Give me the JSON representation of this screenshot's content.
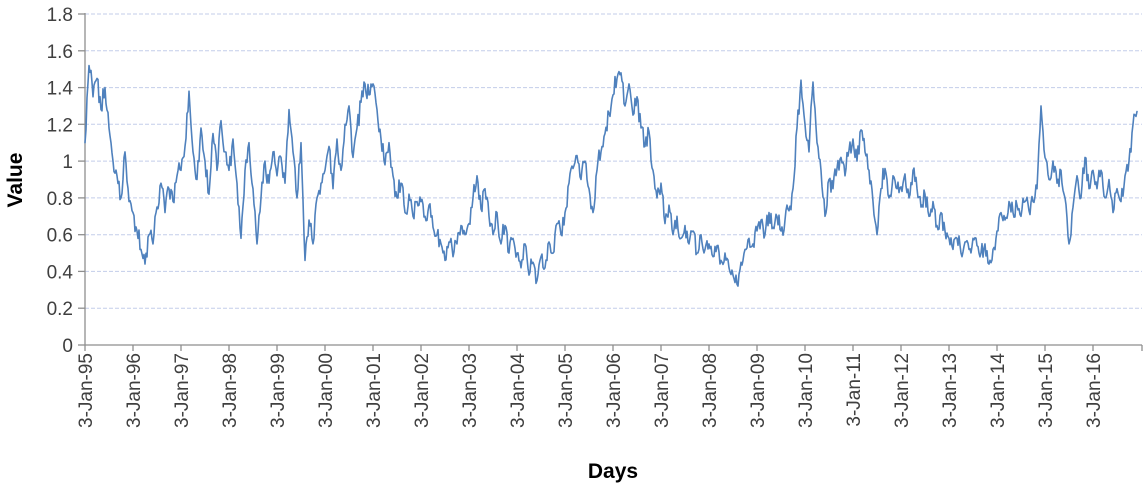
{
  "figure": {
    "y_axis_title": "Value",
    "x_axis_title": "Days",
    "background": "#ffffff"
  },
  "chart_data": {
    "type": "line",
    "title": "",
    "xlabel": "Days",
    "ylabel": "Value",
    "ylim": [
      0,
      1.8
    ],
    "ytick_step": 0.2,
    "yticks": [
      "0",
      "0.2",
      "0.4",
      "0.6",
      "0.8",
      "1",
      "1.2",
      "1.4",
      "1.6",
      "1.8"
    ],
    "x_ticks": [
      "3-Jan-95",
      "3-Jan-96",
      "3-Jan-97",
      "3-Jan-98",
      "3-Jan-99",
      "3-Jan-00",
      "3-Jan-01",
      "3-Jan-02",
      "3-Jan-03",
      "3-Jan-04",
      "3-Jan-05",
      "3-Jan-06",
      "3-Jan-07",
      "3-Jan-08",
      "3-Jan-09",
      "3-Jan-10",
      "3-Jan-11",
      "3-Jan-12",
      "3-Jan-13",
      "3-Jan-14",
      "3-Jan-15",
      "3-Jan-16"
    ],
    "x_start_year": 1995,
    "x_end_approx": "Dec-2016",
    "grid": {
      "horizontal": true,
      "style": "dashed",
      "color": "#c3cdea"
    },
    "legend": null,
    "axis_color": "#8e8e8e",
    "tick_label_color": "#3f3f3f",
    "series": [
      {
        "name": "Value",
        "color": "#4f81bd",
        "noise_amplitude": 0.06,
        "years": [
          {
            "year": 1995,
            "values": [
              1.1,
              1.52,
              1.35,
              1.45,
              1.28,
              1.4,
              1.18,
              1.0,
              0.92,
              0.8,
              1.05,
              0.78
            ]
          },
          {
            "year": 1996,
            "values": [
              0.72,
              0.62,
              0.52,
              0.44,
              0.6,
              0.55,
              0.75,
              0.88,
              0.72,
              0.85,
              0.78,
              0.92
            ]
          },
          {
            "year": 1997,
            "values": [
              0.95,
              1.08,
              1.38,
              1.05,
              0.9,
              1.18,
              1.0,
              0.82,
              1.15,
              0.95,
              1.22,
              1.05
            ]
          },
          {
            "year": 1998,
            "values": [
              0.95,
              1.12,
              0.88,
              0.58,
              0.95,
              1.1,
              0.85,
              0.55,
              0.8,
              1.0,
              0.88,
              1.05
            ]
          },
          {
            "year": 1999,
            "values": [
              0.92,
              1.02,
              0.88,
              1.28,
              1.05,
              0.8,
              1.1,
              0.46,
              0.68,
              0.55,
              0.8,
              0.88
            ]
          },
          {
            "year": 2000,
            "values": [
              0.95,
              1.08,
              0.85,
              1.12,
              0.95,
              1.2,
              1.3,
              1.02,
              1.18,
              1.32,
              1.42,
              1.36
            ]
          },
          {
            "year": 2001,
            "values": [
              1.42,
              1.28,
              1.12,
              0.98,
              1.1,
              0.92,
              0.8,
              0.88,
              0.72,
              0.82,
              0.7,
              0.78
            ]
          },
          {
            "year": 2002,
            "values": [
              0.78,
              0.7,
              0.76,
              0.64,
              0.6,
              0.55,
              0.46,
              0.56,
              0.48,
              0.55,
              0.65,
              0.6
            ]
          },
          {
            "year": 2003,
            "values": [
              0.66,
              0.8,
              0.92,
              0.74,
              0.85,
              0.7,
              0.6,
              0.72,
              0.55,
              0.65,
              0.5,
              0.58
            ]
          },
          {
            "year": 2004,
            "values": [
              0.5,
              0.42,
              0.55,
              0.38,
              0.45,
              0.35,
              0.48,
              0.42,
              0.56,
              0.5,
              0.66,
              0.6
            ]
          },
          {
            "year": 2005,
            "values": [
              0.72,
              0.88,
              0.96,
              1.03,
              0.9,
              1.0,
              0.85,
              0.72,
              0.95,
              1.05,
              1.15,
              1.26
            ]
          },
          {
            "year": 2006,
            "values": [
              1.36,
              1.45,
              1.48,
              1.3,
              1.42,
              1.25,
              1.35,
              1.18,
              1.08,
              1.16,
              0.95,
              0.8
            ]
          },
          {
            "year": 2007,
            "values": [
              0.88,
              0.66,
              0.76,
              0.6,
              0.7,
              0.58,
              0.65,
              0.55,
              0.62,
              0.5,
              0.6,
              0.52
            ]
          },
          {
            "year": 2008,
            "values": [
              0.55,
              0.48,
              0.54,
              0.46,
              0.5,
              0.42,
              0.38,
              0.33,
              0.45,
              0.52,
              0.58,
              0.55
            ]
          },
          {
            "year": 2009,
            "values": [
              0.62,
              0.68,
              0.6,
              0.72,
              0.64,
              0.7,
              0.62,
              0.68,
              0.73,
              0.85,
              1.18,
              1.44
            ]
          },
          {
            "year": 2010,
            "values": [
              1.2,
              1.05,
              1.43,
              1.1,
              0.95,
              0.7,
              0.9,
              0.85,
              0.96,
              1.02,
              0.92,
              1.06
            ]
          },
          {
            "year": 2011,
            "values": [
              1.12,
              1.0,
              1.17,
              1.05,
              0.95,
              0.78,
              0.6,
              0.85,
              0.96,
              0.8,
              0.92,
              0.85
            ]
          },
          {
            "year": 2012,
            "values": [
              0.86,
              0.93,
              0.8,
              0.95,
              0.85,
              0.75,
              0.82,
              0.7,
              0.78,
              0.65,
              0.72,
              0.62
            ]
          },
          {
            "year": 2013,
            "values": [
              0.58,
              0.52,
              0.58,
              0.5,
              0.56,
              0.52,
              0.58,
              0.54,
              0.5,
              0.55,
              0.44,
              0.52
            ]
          },
          {
            "year": 2014,
            "values": [
              0.62,
              0.72,
              0.68,
              0.78,
              0.72,
              0.76,
              0.7,
              0.78,
              0.73,
              0.78,
              0.85,
              1.3
            ]
          },
          {
            "year": 2015,
            "values": [
              1.02,
              0.9,
              1.0,
              0.88,
              0.95,
              0.8,
              0.55,
              0.75,
              0.92,
              0.8,
              1.02,
              0.85
            ]
          },
          {
            "year": 2016,
            "values": [
              0.95,
              0.85,
              0.95,
              0.8,
              0.9,
              0.72,
              0.85,
              0.78,
              0.92,
              1.0,
              1.2,
              1.27
            ]
          }
        ]
      }
    ]
  }
}
